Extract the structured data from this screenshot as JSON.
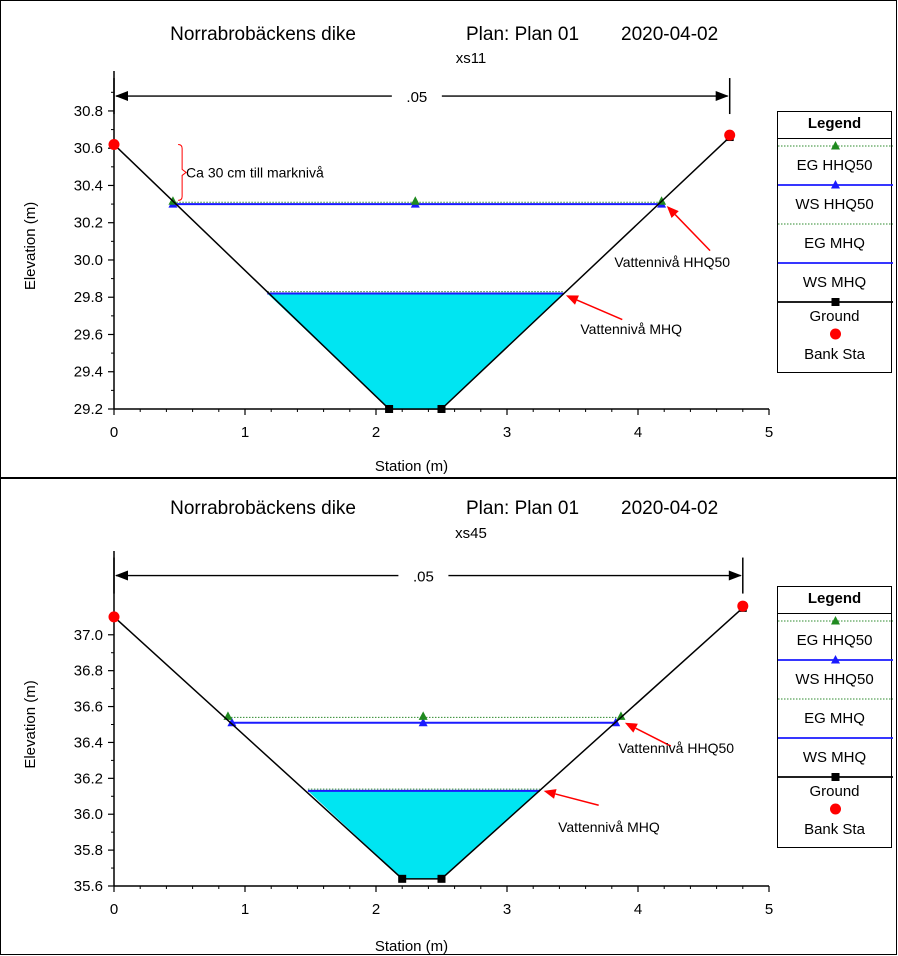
{
  "colors": {
    "ground": "#000000",
    "water_fill": "#00e5f2",
    "ws_line": "#1a1aff",
    "eg_line": "#2e8b2e",
    "eg_marker": "#1f8a1f",
    "bank": "#ff0000",
    "arrow": "#ff0000"
  },
  "legend": {
    "title": "Legend",
    "items": [
      {
        "label": "EG HHQ50",
        "color": "#2e8b2e",
        "marker": "triangle",
        "style": "dotted"
      },
      {
        "label": "WS HHQ50",
        "color": "#1a1aff",
        "marker": "triangle",
        "style": "solid"
      },
      {
        "label": "EG MHQ",
        "color": "#2e8b2e",
        "marker": "none",
        "style": "dotted"
      },
      {
        "label": "WS MHQ",
        "color": "#1a1aff",
        "marker": "none",
        "style": "solid"
      },
      {
        "label": "Ground",
        "color": "#000000",
        "marker": "square",
        "style": "solid"
      },
      {
        "label": "Bank Sta",
        "color": "#ff0000",
        "marker": "circle",
        "style": "none"
      }
    ]
  },
  "chart_data": [
    {
      "type": "line",
      "title_left": "Norrabrobäckens dike",
      "title_plan": "Plan: Plan 01",
      "title_date": "2020-04-02",
      "subtitle": "xs11",
      "xlabel": "Station (m)",
      "ylabel": "Elevation (m)",
      "xlim": [
        0,
        5
      ],
      "ylim": [
        29.2,
        30.95
      ],
      "xticks": [
        "0",
        "1",
        "2",
        "3",
        "4",
        "5"
      ],
      "yticks": [
        "29.2",
        "29.4",
        "29.6",
        "29.8",
        "30.0",
        "30.2",
        "30.4",
        "30.6",
        "30.8"
      ],
      "manning": {
        "label": ".05",
        "x_start": 0,
        "x_end": 4.7,
        "y": 30.88
      },
      "ground": {
        "x": [
          0,
          2.1,
          2.5,
          4.7
        ],
        "y": [
          30.62,
          29.2,
          29.2,
          30.66
        ]
      },
      "bank_stations": {
        "x": [
          0,
          4.7
        ],
        "y": [
          30.62,
          30.67
        ]
      },
      "ws_hhq50": {
        "x": [
          0.45,
          4.18
        ],
        "y": 30.3,
        "markers_x": [
          0.45,
          2.3,
          4.18
        ]
      },
      "eg_hhq50": {
        "x": [
          0.43,
          4.19
        ],
        "y": 30.31,
        "markers_x": [
          0.45,
          2.3,
          4.18
        ]
      },
      "ws_mhq": {
        "x": [
          1.17,
          3.43
        ],
        "y": 29.82
      },
      "eg_mhq": {
        "x": [
          1.17,
          3.43
        ],
        "y": 29.83
      },
      "annotations": [
        {
          "text": "Ca 30 cm till marknivå",
          "kind": "bracket",
          "x": 0.55,
          "y": 30.47,
          "bracket_x": 0.52,
          "bracket_y": [
            30.32,
            30.62
          ]
        },
        {
          "text": "Vattennivå HHQ50",
          "kind": "arrow",
          "x": 3.82,
          "y": 29.99,
          "tip": [
            4.22,
            30.29
          ],
          "tail": [
            4.55,
            30.05
          ]
        },
        {
          "text": "Vattennivå MHQ",
          "kind": "arrow",
          "x": 3.56,
          "y": 29.63,
          "tip": [
            3.45,
            29.81
          ],
          "tail": [
            3.88,
            29.68
          ]
        }
      ]
    },
    {
      "type": "line",
      "title_left": "Norrabrobäckens dike",
      "title_plan": "Plan: Plan 01",
      "title_date": "2020-04-02",
      "subtitle": "xs45",
      "xlabel": "Station (m)",
      "ylabel": "Elevation (m)",
      "xlim": [
        0,
        5
      ],
      "ylim": [
        35.6,
        37.4
      ],
      "xticks": [
        "0",
        "1",
        "2",
        "3",
        "4",
        "5"
      ],
      "yticks": [
        "35.6",
        "35.8",
        "36.0",
        "36.2",
        "36.4",
        "36.6",
        "36.8",
        "37.0"
      ],
      "manning": {
        "label": ".05",
        "x_start": 0,
        "x_end": 4.8,
        "y": 37.33
      },
      "ground": {
        "x": [
          0,
          2.2,
          2.5,
          4.8
        ],
        "y": [
          37.1,
          35.64,
          35.64,
          37.15
        ]
      },
      "bank_stations": {
        "x": [
          0,
          4.8
        ],
        "y": [
          37.1,
          37.16
        ]
      },
      "ws_hhq50": {
        "x": [
          0.9,
          3.83
        ],
        "y": 36.51,
        "markers_x": [
          0.9,
          2.36,
          3.83
        ]
      },
      "eg_hhq50": {
        "x": [
          0.87,
          3.87
        ],
        "y": 36.54,
        "markers_x": [
          0.87,
          2.36,
          3.87
        ]
      },
      "ws_mhq": {
        "x": [
          1.48,
          3.25
        ],
        "y": 36.13
      },
      "eg_mhq": {
        "x": [
          1.48,
          3.25
        ],
        "y": 36.14
      },
      "annotations": [
        {
          "text": "Vattennivå HHQ50",
          "kind": "arrow",
          "x": 3.85,
          "y": 36.37,
          "tip": [
            3.9,
            36.51
          ],
          "tail": [
            4.25,
            36.38
          ]
        },
        {
          "text": "Vattennivå MHQ",
          "kind": "arrow",
          "x": 3.39,
          "y": 35.93,
          "tip": [
            3.28,
            36.13
          ],
          "tail": [
            3.7,
            36.05
          ]
        }
      ]
    }
  ]
}
